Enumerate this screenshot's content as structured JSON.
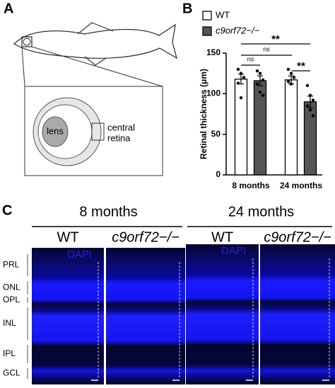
{
  "panel_labels": [
    "A",
    "B",
    "C"
  ],
  "diagram": {
    "lens": "lens",
    "region": [
      "central",
      "retina"
    ]
  },
  "micrographs": {
    "ages": [
      "8 months",
      "24 months"
    ],
    "genotypes": [
      "WT",
      "c9orf72−/−",
      "WT",
      "c9orf72−/−"
    ],
    "stain": "DAPI",
    "layers": [
      "PRL",
      "ONL",
      "OPL",
      "INL",
      "IPL",
      "GCL"
    ]
  },
  "chart_data": {
    "type": "bar",
    "y_label": "Retinal thickness (μm)",
    "categories": [
      "8 months",
      "24 months"
    ],
    "series": [
      {
        "name": "WT",
        "color": "#ffffff",
        "values": [
          118,
          117
        ],
        "errors": [
          6,
          5
        ],
        "points": [
          [
            130,
            125,
            120,
            113,
            95
          ],
          [
            130,
            125,
            120,
            115,
            112
          ]
        ]
      },
      {
        "name": "c9orf72−/−",
        "color": "#555555",
        "values": [
          116,
          90
        ],
        "errors": [
          6,
          7
        ],
        "points": [
          [
            128,
            125,
            117,
            112,
            102,
            98
          ],
          [
            110,
            98,
            92,
            85,
            80,
            73
          ]
        ]
      }
    ],
    "annotations": [
      "ns",
      "ns",
      "**",
      "**"
    ],
    "ylim": [
      0,
      150
    ],
    "yticks": [
      0,
      50,
      100,
      150
    ],
    "grid": false
  }
}
